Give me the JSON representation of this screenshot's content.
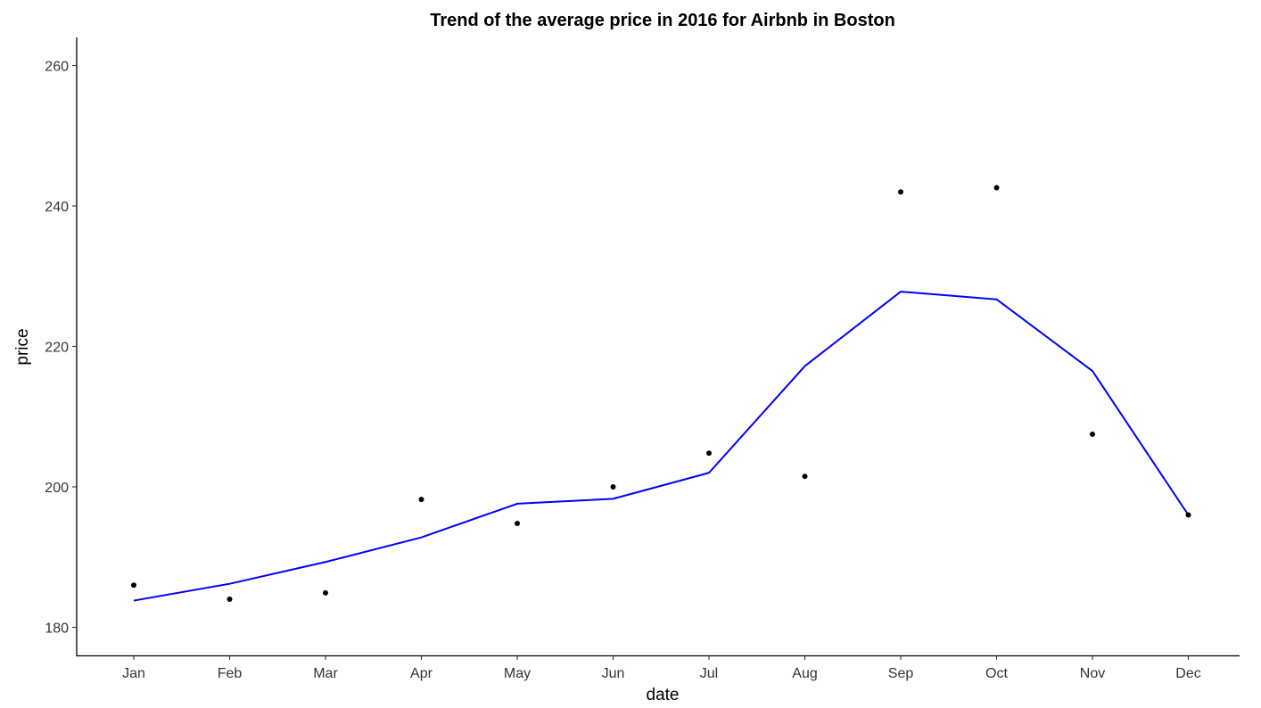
{
  "chart_data": {
    "type": "scatter",
    "title": "Trend of the average price in 2016 for Airbnb in Boston",
    "xlabel": "date",
    "ylabel": "price",
    "categories": [
      "Jan",
      "Feb",
      "Mar",
      "Apr",
      "May",
      "Jun",
      "Jul",
      "Aug",
      "Sep",
      "Oct",
      "Nov",
      "Dec"
    ],
    "ylim": [
      176,
      264
    ],
    "yticks": [
      180,
      200,
      220,
      240,
      260
    ],
    "grid": false,
    "legend": "none",
    "series": [
      {
        "kind": "points",
        "color": "#000000",
        "values": [
          186.0,
          184.0,
          184.9,
          198.2,
          194.8,
          200.0,
          204.8,
          201.5,
          242.0,
          242.6,
          207.5,
          196.0
        ]
      },
      {
        "kind": "line",
        "color": "#0000FF",
        "values": [
          183.8,
          186.2,
          189.3,
          192.8,
          197.6,
          198.3,
          202.0,
          217.2,
          227.8,
          226.7,
          216.5,
          196.0
        ]
      }
    ]
  }
}
